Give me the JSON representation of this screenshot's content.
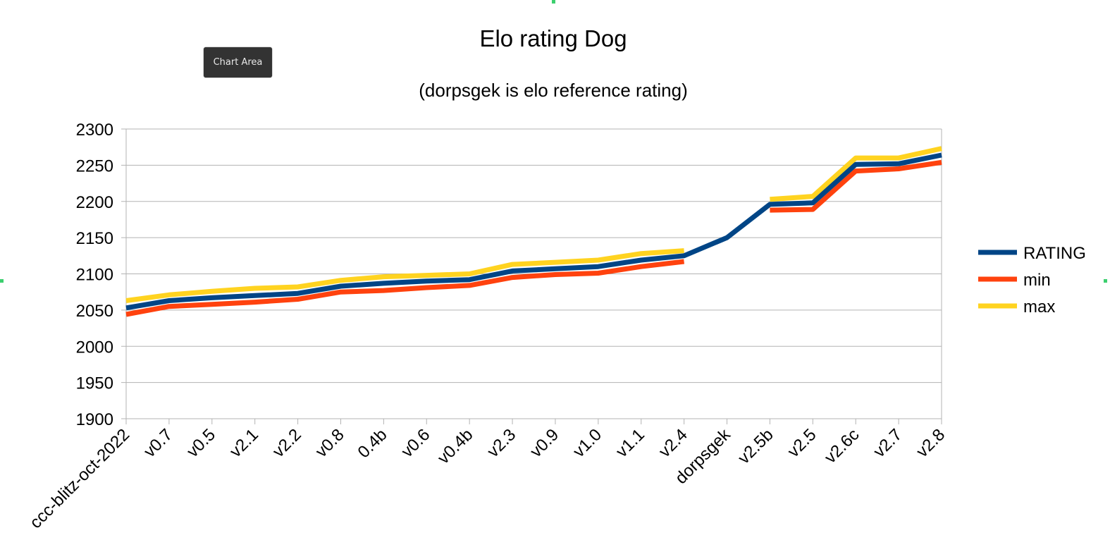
{
  "tooltip": {
    "label": "Chart Area"
  },
  "chart_data": {
    "type": "line",
    "title": "Elo rating Dog",
    "subtitle": "(dorpsgek is elo reference rating)",
    "xlabel": "",
    "ylabel": "",
    "ylim": [
      1900,
      2300
    ],
    "yticks": [
      1900,
      1950,
      2000,
      2050,
      2100,
      2150,
      2200,
      2250,
      2300
    ],
    "grid": true,
    "legend_position": "right",
    "categories": [
      "ccc-blitz-oct-2022",
      "v0.7",
      "v0.5",
      "v2.1",
      "v2.2",
      "v0.8",
      "0.4b",
      "v0.6",
      "v0.4b",
      "v2.3",
      "v0.9",
      "v1.0",
      "v1.1",
      "v2.4",
      "dorpsgek",
      "v2.5b",
      "v2.5",
      "v2.6c",
      "v2.7",
      "v2.8"
    ],
    "series": [
      {
        "name": "RATING",
        "color": "#004586",
        "values": [
          2053,
          2063,
          2067,
          2070,
          2073,
          2083,
          2087,
          2090,
          2092,
          2104,
          2107,
          2110,
          2119,
          2125,
          2150,
          2196,
          2198,
          2251,
          2252,
          2264
        ]
      },
      {
        "name": "min",
        "color": "#ff420e",
        "values": [
          2044,
          2055,
          2058,
          2061,
          2065,
          2075,
          2077,
          2081,
          2084,
          2095,
          2099,
          2101,
          2110,
          2117,
          null,
          2188,
          2189,
          2242,
          2245,
          2254
        ]
      },
      {
        "name": "max",
        "color": "#ffd320",
        "values": [
          2063,
          2071,
          2076,
          2080,
          2082,
          2091,
          2096,
          2098,
          2100,
          2113,
          2116,
          2119,
          2128,
          2132,
          null,
          2203,
          2207,
          2260,
          2260,
          2273
        ]
      }
    ]
  }
}
